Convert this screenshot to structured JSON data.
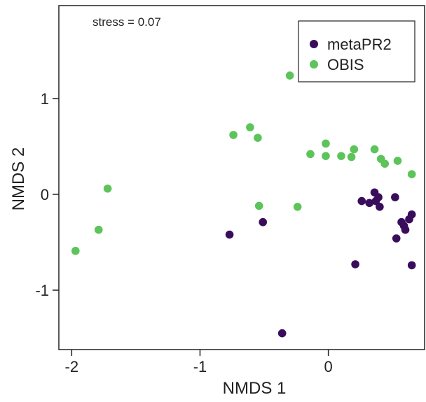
{
  "chart_data": {
    "type": "scatter",
    "title": "",
    "xlabel": "NMDS 1",
    "ylabel": "NMDS 2",
    "xlim": [
      -2.1,
      0.75
    ],
    "ylim": [
      -1.62,
      1.97
    ],
    "x_ticks": [
      -2,
      -1,
      0
    ],
    "x_tick_labels": [
      "-2",
      "-1",
      "0"
    ],
    "y_ticks": [
      -1,
      0,
      1
    ],
    "y_tick_labels": [
      "-1",
      "0",
      "1"
    ],
    "grid": false,
    "legend_position": "top-right",
    "annotation": "stress = 0.07",
    "series": [
      {
        "name": "metaPR2",
        "color": "#3a0d5c",
        "points": [
          {
            "x": -0.36,
            "y": -1.45
          },
          {
            "x": -0.77,
            "y": -0.42
          },
          {
            "x": -0.51,
            "y": -0.29
          },
          {
            "x": 0.21,
            "y": -0.73
          },
          {
            "x": 0.26,
            "y": -0.07
          },
          {
            "x": 0.32,
            "y": -0.09
          },
          {
            "x": 0.36,
            "y": 0.02
          },
          {
            "x": 0.37,
            "y": -0.07
          },
          {
            "x": 0.39,
            "y": -0.03
          },
          {
            "x": 0.4,
            "y": -0.13
          },
          {
            "x": 0.52,
            "y": -0.03
          },
          {
            "x": 0.53,
            "y": -0.46
          },
          {
            "x": 0.57,
            "y": -0.29
          },
          {
            "x": 0.59,
            "y": -0.33
          },
          {
            "x": 0.6,
            "y": -0.37
          },
          {
            "x": 0.63,
            "y": -0.26
          },
          {
            "x": 0.65,
            "y": -0.21
          },
          {
            "x": 0.65,
            "y": -0.74
          }
        ]
      },
      {
        "name": "OBIS",
        "color": "#5cc45a",
        "points": [
          {
            "x": -1.97,
            "y": -0.59
          },
          {
            "x": -1.79,
            "y": -0.37
          },
          {
            "x": -1.72,
            "y": 0.06
          },
          {
            "x": -0.74,
            "y": 0.62
          },
          {
            "x": -0.61,
            "y": 0.7
          },
          {
            "x": -0.55,
            "y": 0.59
          },
          {
            "x": -0.54,
            "y": -0.12
          },
          {
            "x": -0.3,
            "y": 1.24
          },
          {
            "x": -0.24,
            "y": -0.13
          },
          {
            "x": -0.14,
            "y": 0.42
          },
          {
            "x": -0.02,
            "y": 0.4
          },
          {
            "x": -0.02,
            "y": 0.53
          },
          {
            "x": 0.1,
            "y": 0.4
          },
          {
            "x": 0.18,
            "y": 0.39
          },
          {
            "x": 0.2,
            "y": 0.47
          },
          {
            "x": 0.36,
            "y": 0.47
          },
          {
            "x": 0.41,
            "y": 0.37
          },
          {
            "x": 0.44,
            "y": 0.32
          },
          {
            "x": 0.54,
            "y": 0.35
          },
          {
            "x": 0.65,
            "y": 0.21
          }
        ]
      }
    ]
  }
}
